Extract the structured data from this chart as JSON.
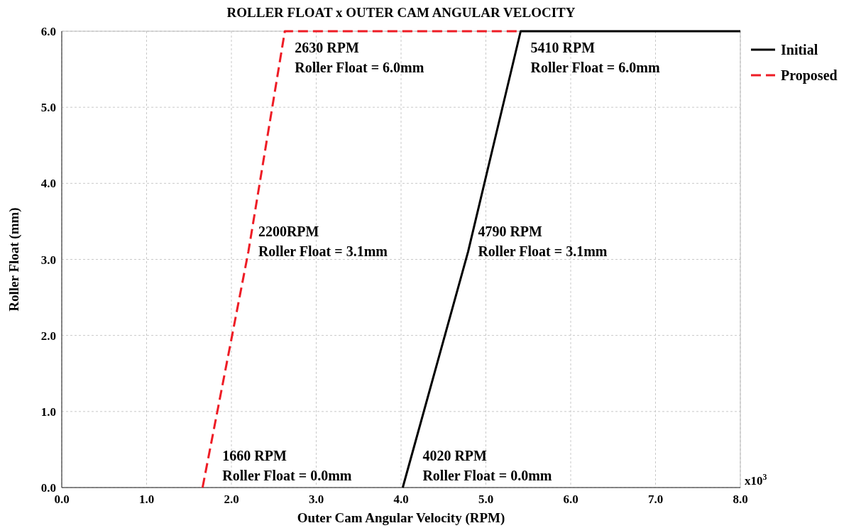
{
  "chart_data": {
    "type": "line",
    "title": "ROLLER FLOAT x OUTER CAM ANGULAR VELOCITY",
    "xlabel": "Outer Cam Angular Velocity (RPM)",
    "ylabel": "Roller Float (mm)",
    "xlim": [
      0,
      8
    ],
    "ylim": [
      0,
      6
    ],
    "xticks": [
      {
        "value": 0,
        "label": "0.0"
      },
      {
        "value": 1,
        "label": "1.0"
      },
      {
        "value": 2,
        "label": "2.0"
      },
      {
        "value": 3,
        "label": "3.0"
      },
      {
        "value": 4,
        "label": "4.0"
      },
      {
        "value": 5,
        "label": "5.0"
      },
      {
        "value": 6,
        "label": "6.0"
      },
      {
        "value": 7,
        "label": "7.0"
      },
      {
        "value": 8,
        "label": "8.0"
      }
    ],
    "yticks": [
      {
        "value": 0,
        "label": "0.0"
      },
      {
        "value": 1,
        "label": "1.0"
      },
      {
        "value": 2,
        "label": "2.0"
      },
      {
        "value": 3,
        "label": "3.0"
      },
      {
        "value": 4,
        "label": "4.0"
      },
      {
        "value": 5,
        "label": "5.0"
      },
      {
        "value": 6,
        "label": "6.0"
      }
    ],
    "grid": true,
    "legend": "top right",
    "marker": "none",
    "series": [
      {
        "name": "Initial",
        "color": "#000000",
        "line_style": "solid",
        "x": [
          4.02,
          4.79,
          5.41,
          8.0
        ],
        "values": [
          0,
          3.1,
          6.0,
          6.0
        ]
      },
      {
        "name": "Proposed",
        "color": "#ee1c25",
        "line_style": "dashed",
        "x": [
          1.66,
          2.2,
          2.63,
          5.41
        ],
        "values": [
          0,
          3.1,
          6.0,
          6.0
        ]
      }
    ],
    "annotations": [
      {
        "text": "2630 RPM\nRoller Float = 6.0mm",
        "x": 2.63,
        "y": 6.0
      },
      {
        "text": "5410 RPM\nRoller Float = 6.0mm",
        "x": 5.41,
        "y": 6.0
      },
      {
        "text": "2200RPM\nRoller Float = 3.1mm",
        "x": 2.2,
        "y": 3.1
      },
      {
        "text": "4790 RPM\nRoller Float = 3.1mm",
        "x": 4.79,
        "y": 3.1
      },
      {
        "text": "1660 RPM\nRoller Float = 0.0mm",
        "x": 1.66,
        "y": 0
      },
      {
        "text": "4020 RPM\nRoller Float = 0.0mm",
        "x": 4.02,
        "y": 0
      },
      "x10$^{3}$"
    ]
  }
}
